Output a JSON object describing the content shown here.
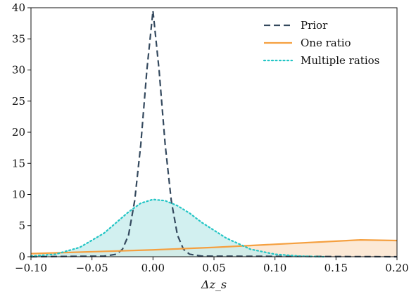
{
  "chart_data": {
    "type": "line",
    "xlabel": "Δz_s",
    "ylabel": "",
    "xlim": [
      -0.1,
      0.2
    ],
    "ylim": [
      0,
      40
    ],
    "xticks": [
      "−0.10",
      "−0.05",
      "0.00",
      "0.05",
      "0.10",
      "0.15",
      "0.20"
    ],
    "yticks": [
      "0",
      "5",
      "10",
      "15",
      "20",
      "25",
      "30",
      "35",
      "40"
    ],
    "grid": false,
    "legend_placement": "top-right",
    "series": [
      {
        "name": "Prior",
        "style": "dashed",
        "color": "#34495e",
        "fill": "none",
        "x": [
          -0.1,
          -0.04,
          -0.03,
          -0.025,
          -0.02,
          -0.015,
          -0.01,
          -0.005,
          0.0,
          0.005,
          0.01,
          0.015,
          0.02,
          0.025,
          0.03,
          0.04,
          0.2
        ],
        "y": [
          0.0,
          0.1,
          0.4,
          1.2,
          3.5,
          9.0,
          18.0,
          30.0,
          39.5,
          30.0,
          18.0,
          9.0,
          3.5,
          1.2,
          0.4,
          0.1,
          0.0
        ]
      },
      {
        "name": "One ratio",
        "style": "solid",
        "color": "#f5a040",
        "fill": "#fbe3cc",
        "x": [
          -0.1,
          -0.05,
          0.0,
          0.05,
          0.1,
          0.15,
          0.17,
          0.2
        ],
        "y": [
          0.5,
          0.8,
          1.1,
          1.5,
          2.0,
          2.5,
          2.7,
          2.6
        ]
      },
      {
        "name": "Multiple ratios",
        "style": "dotted",
        "color": "#22c5c5",
        "fill": "#c7ecec",
        "x": [
          -0.1,
          -0.08,
          -0.06,
          -0.04,
          -0.03,
          -0.02,
          -0.01,
          0.0,
          0.01,
          0.02,
          0.03,
          0.04,
          0.06,
          0.08,
          0.1,
          0.12,
          0.14
        ],
        "y": [
          0.1,
          0.4,
          1.5,
          3.8,
          5.5,
          7.2,
          8.6,
          9.2,
          9.0,
          8.2,
          7.0,
          5.5,
          3.0,
          1.2,
          0.4,
          0.1,
          0.0
        ]
      }
    ]
  }
}
